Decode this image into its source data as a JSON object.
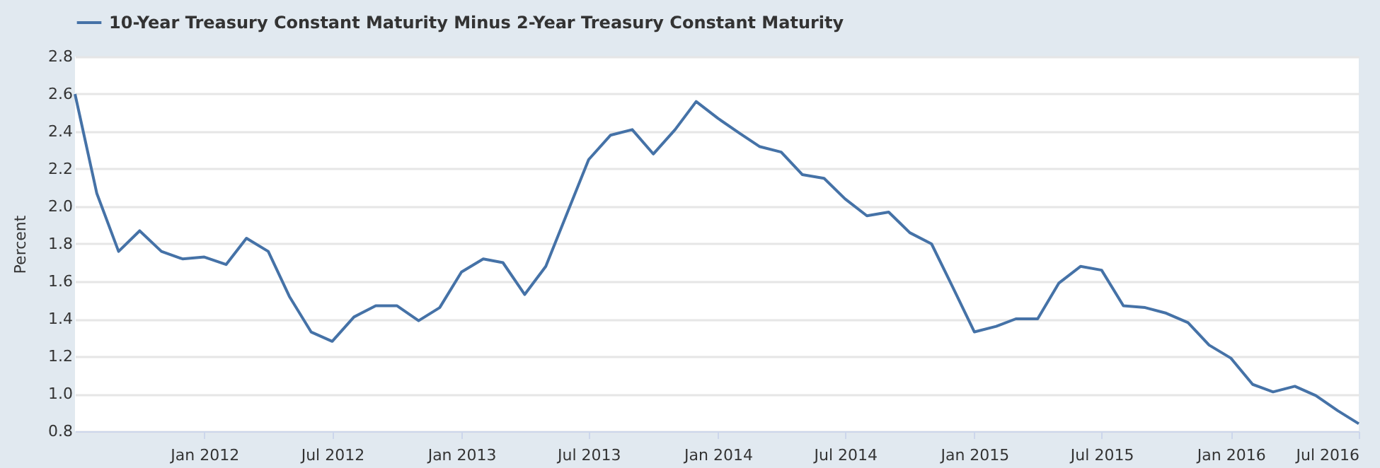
{
  "chart_data": {
    "type": "line",
    "ylabel": "Percent",
    "x": [
      "2011-07",
      "2011-08",
      "2011-09",
      "2011-10",
      "2011-11",
      "2011-12",
      "2012-01",
      "2012-02",
      "2012-03",
      "2012-04",
      "2012-05",
      "2012-06",
      "2012-07",
      "2012-08",
      "2012-09",
      "2012-10",
      "2012-11",
      "2012-12",
      "2013-01",
      "2013-02",
      "2013-03",
      "2013-04",
      "2013-05",
      "2013-06",
      "2013-07",
      "2013-08",
      "2013-09",
      "2013-10",
      "2013-11",
      "2013-12",
      "2014-01",
      "2014-02",
      "2014-03",
      "2014-04",
      "2014-05",
      "2014-06",
      "2014-07",
      "2014-08",
      "2014-09",
      "2014-10",
      "2014-11",
      "2014-12",
      "2015-01",
      "2015-02",
      "2015-03",
      "2015-04",
      "2015-05",
      "2015-06",
      "2015-07",
      "2015-08",
      "2015-09",
      "2015-10",
      "2015-11",
      "2015-12",
      "2016-01",
      "2016-02",
      "2016-03",
      "2016-04",
      "2016-05",
      "2016-06",
      "2016-07"
    ],
    "series": [
      {
        "name": "10-Year Treasury Constant Maturity Minus 2-Year Treasury Constant Maturity",
        "color": "#4572a7",
        "values": [
          2.6,
          2.07,
          1.76,
          1.87,
          1.76,
          1.72,
          1.73,
          1.69,
          1.83,
          1.76,
          1.52,
          1.33,
          1.28,
          1.41,
          1.47,
          1.47,
          1.39,
          1.46,
          1.65,
          1.72,
          1.7,
          1.53,
          1.68,
          1.97,
          2.25,
          2.38,
          2.41,
          2.28,
          2.41,
          2.56,
          2.47,
          2.39,
          2.32,
          2.29,
          2.17,
          2.15,
          2.04,
          1.95,
          1.97,
          1.86,
          1.8,
          1.57,
          1.33,
          1.36,
          1.4,
          1.4,
          1.59,
          1.68,
          1.66,
          1.47,
          1.46,
          1.43,
          1.38,
          1.26,
          1.19,
          1.05,
          1.01,
          1.04,
          0.99,
          0.91,
          0.84
        ]
      }
    ],
    "xlim": [
      "2011-07",
      "2016-07"
    ],
    "xticks": [
      {
        "value": "2012-01",
        "label": "Jan 2012"
      },
      {
        "value": "2012-07",
        "label": "Jul 2012"
      },
      {
        "value": "2013-01",
        "label": "Jan 2013"
      },
      {
        "value": "2013-07",
        "label": "Jul 2013"
      },
      {
        "value": "2014-01",
        "label": "Jan 2014"
      },
      {
        "value": "2014-07",
        "label": "Jul 2014"
      },
      {
        "value": "2015-01",
        "label": "Jan 2015"
      },
      {
        "value": "2015-07",
        "label": "Jul 2015"
      },
      {
        "value": "2016-01",
        "label": "Jan 2016"
      },
      {
        "value": "2016-07",
        "label": "Jul 2016"
      }
    ],
    "ylim": [
      0.8,
      2.8
    ],
    "yticks": [
      0.8,
      {
        "value": 1.0,
        "label": "1.0"
      },
      1.2,
      1.4,
      1.6,
      1.8,
      {
        "value": 2.0,
        "label": "2.0"
      },
      2.2,
      2.4,
      2.6,
      2.8
    ],
    "grid": "y",
    "legend": "top left",
    "marker": "none",
    "line_style": "solid"
  }
}
